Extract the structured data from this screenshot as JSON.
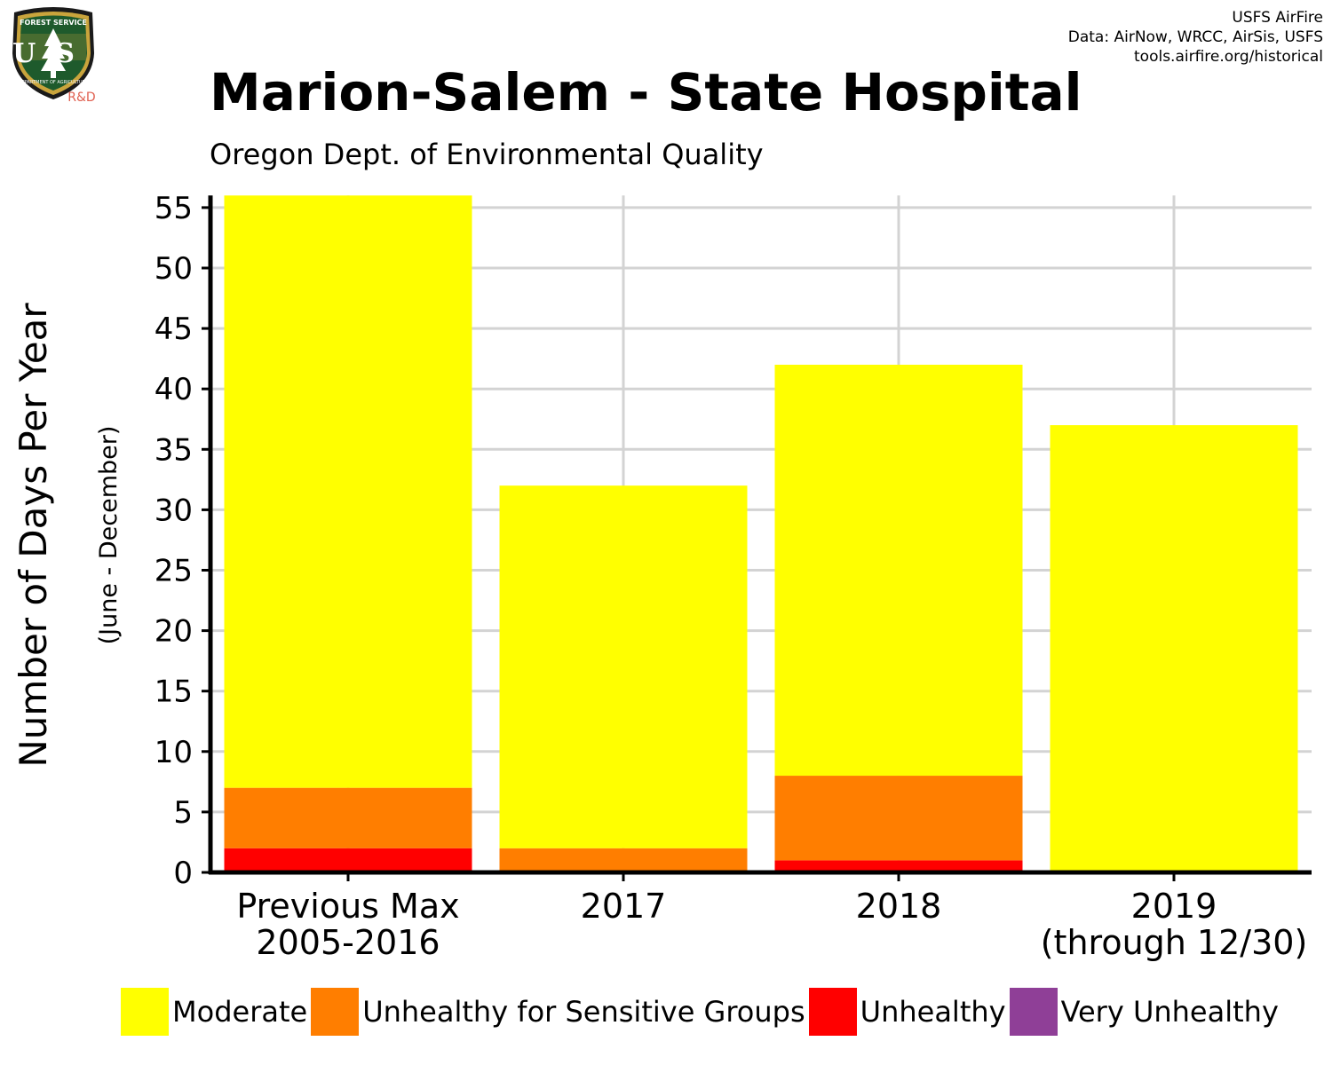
{
  "logo": {
    "top_text": "FOREST SERVICE",
    "letters": "US",
    "bottom_text": "DEPARTMENT OF AGRICULTURE",
    "badge": "R&D"
  },
  "credits": {
    "line1": "USFS AirFire",
    "line2": "Data: AirNow, WRCC, AirSis, USFS",
    "line3": "tools.airfire.org/historical"
  },
  "title": "Marion-Salem - State Hospital",
  "subtitle": "Oregon Dept. of Environmental Quality",
  "chart_data": {
    "type": "bar",
    "stacked": true,
    "title": "Marion-Salem - State Hospital",
    "subtitle": "Oregon Dept. of Environmental Quality",
    "ylabel": "Number of Days Per Year",
    "ylabel_sub": "(June - December)",
    "xlabel": "",
    "ylim": [
      0,
      56
    ],
    "yticks": [
      0,
      5,
      10,
      15,
      20,
      25,
      30,
      35,
      40,
      45,
      50,
      55
    ],
    "grid": true,
    "legend_position": "bottom",
    "categories": [
      [
        "Previous Max",
        "2005-2016"
      ],
      [
        "2017"
      ],
      [
        "2018"
      ],
      [
        "2019",
        "(through 12/30)"
      ]
    ],
    "series": [
      {
        "name": "Unhealthy",
        "color": "#ff0000",
        "values": [
          2,
          0,
          1,
          0
        ]
      },
      {
        "name": "Unhealthy for Sensitive Groups",
        "color": "#ff7e00",
        "values": [
          5,
          2,
          7,
          0
        ]
      },
      {
        "name": "Moderate",
        "color": "#ffff00",
        "values": [
          49,
          30,
          34,
          37
        ]
      }
    ]
  },
  "legend": [
    {
      "label": "Moderate",
      "color": "#ffff00"
    },
    {
      "label": "Unhealthy for Sensitive Groups",
      "color": "#ff7e00"
    },
    {
      "label": "Unhealthy",
      "color": "#ff0000"
    },
    {
      "label": "Very Unhealthy",
      "color": "#8f3f97"
    }
  ]
}
